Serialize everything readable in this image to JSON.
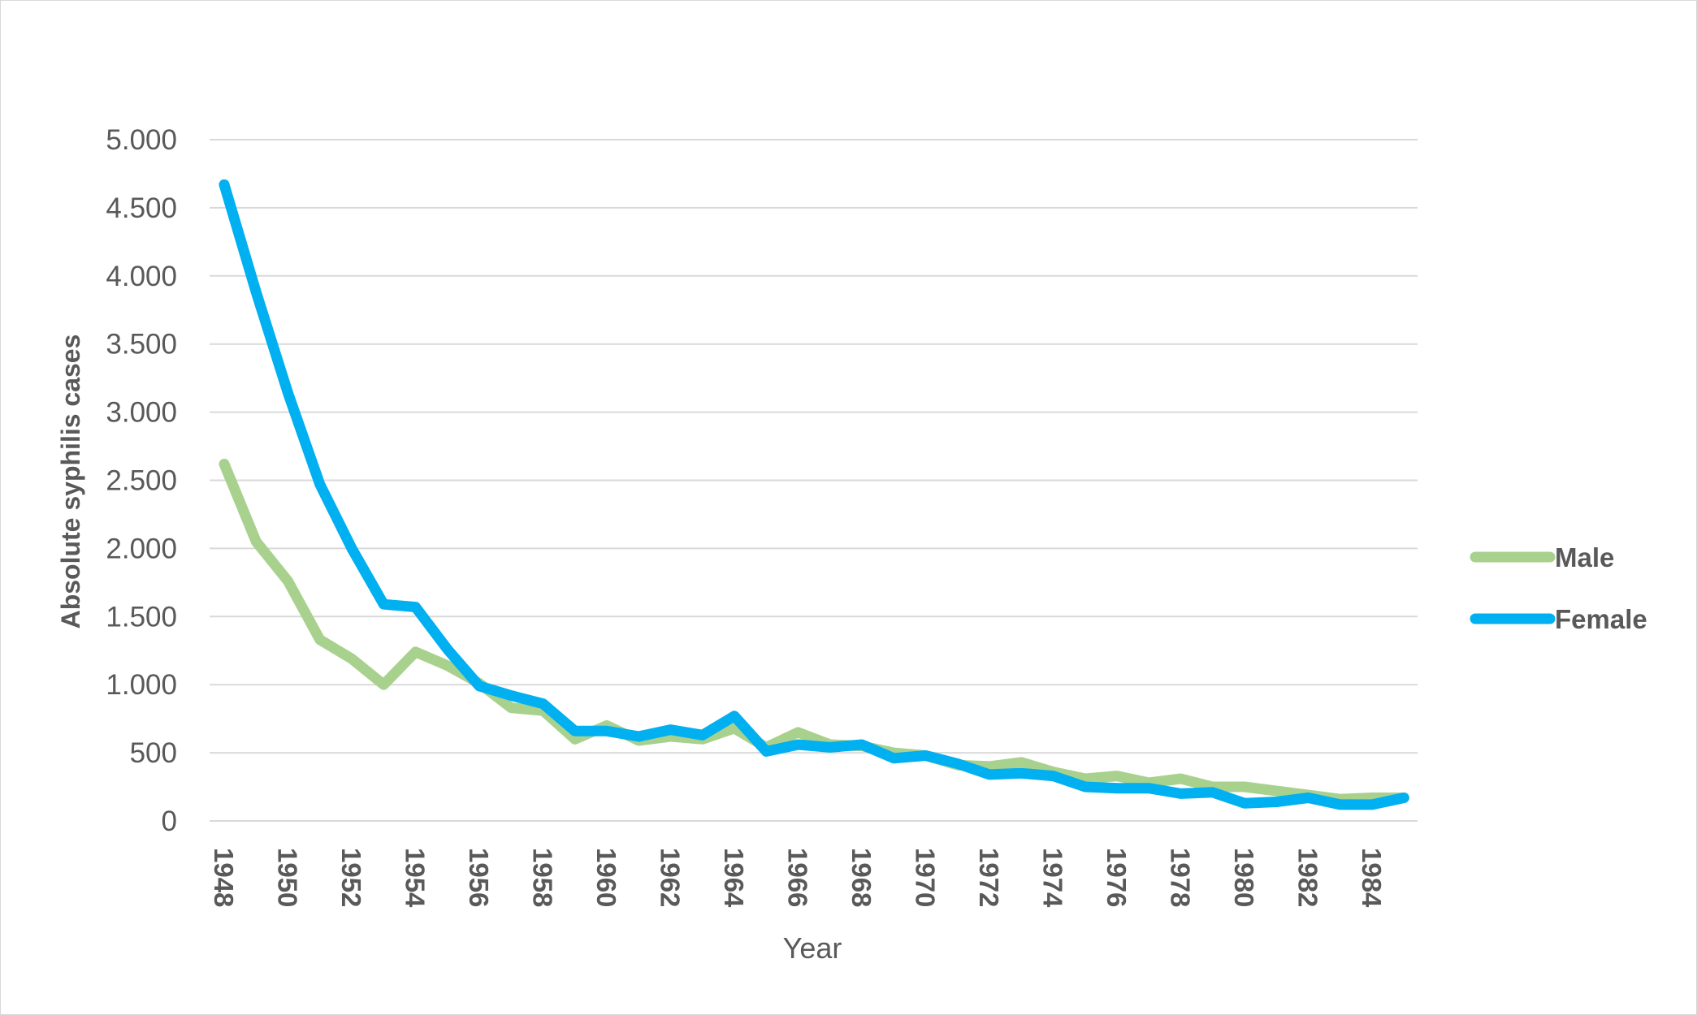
{
  "chart_data": {
    "type": "line",
    "title": "",
    "xlabel": "Year",
    "ylabel": "Absolute syphilis cases",
    "ylim": [
      0,
      5000
    ],
    "y_ticks": [
      0,
      500,
      1000,
      1500,
      2000,
      2500,
      3000,
      3500,
      4000,
      4500,
      5000
    ],
    "y_tick_labels": [
      "0",
      "500",
      "1.000",
      "1.500",
      "2.000",
      "2.500",
      "3.000",
      "3.500",
      "4.000",
      "4.500",
      "5.000"
    ],
    "x": [
      1948,
      1949,
      1950,
      1951,
      1952,
      1953,
      1954,
      1955,
      1956,
      1957,
      1958,
      1959,
      1960,
      1961,
      1962,
      1963,
      1964,
      1965,
      1966,
      1967,
      1968,
      1969,
      1970,
      1971,
      1972,
      1973,
      1974,
      1975,
      1976,
      1977,
      1978,
      1979,
      1980,
      1981,
      1982,
      1983,
      1984,
      1985
    ],
    "x_tick_labels": [
      "1948",
      "1950",
      "1952",
      "1954",
      "1956",
      "1958",
      "1960",
      "1962",
      "1964",
      "1966",
      "1968",
      "1970",
      "1972",
      "1974",
      "1976",
      "1978",
      "1980",
      "1982",
      "1984"
    ],
    "grid": true,
    "legend_position": "right",
    "series": [
      {
        "name": "Male",
        "color": "#a9d18e",
        "values": [
          2620,
          2050,
          1760,
          1330,
          1190,
          1000,
          1240,
          1140,
          1010,
          830,
          810,
          600,
          700,
          590,
          620,
          600,
          680,
          540,
          650,
          560,
          550,
          500,
          480,
          410,
          400,
          430,
          360,
          310,
          330,
          280,
          310,
          250,
          250,
          220,
          190,
          160,
          170,
          170
        ]
      },
      {
        "name": "Female",
        "color": "#00b0f0",
        "values": [
          4670,
          3880,
          3140,
          2470,
          2000,
          1590,
          1570,
          1260,
          990,
          920,
          860,
          660,
          660,
          620,
          670,
          630,
          770,
          510,
          560,
          540,
          560,
          460,
          480,
          420,
          340,
          350,
          330,
          250,
          240,
          240,
          200,
          210,
          130,
          140,
          170,
          120,
          120,
          170
        ]
      }
    ]
  }
}
